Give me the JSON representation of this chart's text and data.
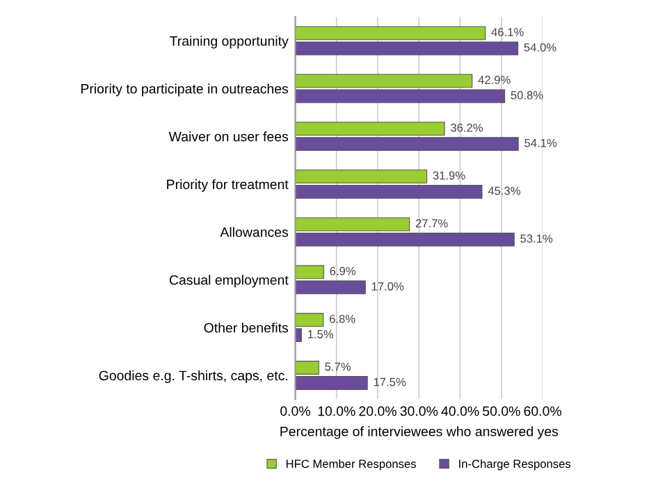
{
  "chart_data": {
    "type": "bar",
    "orientation": "horizontal",
    "categories": [
      "Training opportunity",
      "Priority to participate in outreaches",
      "Waiver on user fees",
      "Priority for treatment",
      "Allowances",
      "Casual employment",
      "Other benefits",
      "Goodies e.g. T-shirts, caps, etc."
    ],
    "series": [
      {
        "name": "HFC Member Responses",
        "color": "#9acd32",
        "values": [
          46.1,
          42.9,
          36.2,
          31.9,
          27.7,
          6.9,
          6.8,
          5.7
        ],
        "value_labels": [
          "46.1%",
          "42.9%",
          "36.2%",
          "31.9%",
          "27.7%",
          "6.9%",
          "6.8%",
          "5.7%"
        ]
      },
      {
        "name": "In-Charge Responses",
        "color": "#6a4c9c",
        "values": [
          54.0,
          50.8,
          54.1,
          45.3,
          53.1,
          17.0,
          1.5,
          17.5
        ],
        "value_labels": [
          "54.0%",
          "50.8%",
          "54.1%",
          "45.3%",
          "53.1%",
          "17.0%",
          "1.5%",
          "17.5%"
        ]
      }
    ],
    "xlabel": "Percentage of interviewees who answered yes",
    "xlim": [
      0,
      60
    ],
    "xticks": [
      {
        "value": 0,
        "label": "0.0%"
      },
      {
        "value": 10,
        "label": "10.0%"
      },
      {
        "value": 20,
        "label": "20.0%"
      },
      {
        "value": 30,
        "label": "30.0%"
      },
      {
        "value": 40,
        "label": "40.0%"
      },
      {
        "value": 50,
        "label": "50.0%"
      },
      {
        "value": 60,
        "label": "60.0%"
      }
    ],
    "grid": "x",
    "legend": "bottom"
  }
}
